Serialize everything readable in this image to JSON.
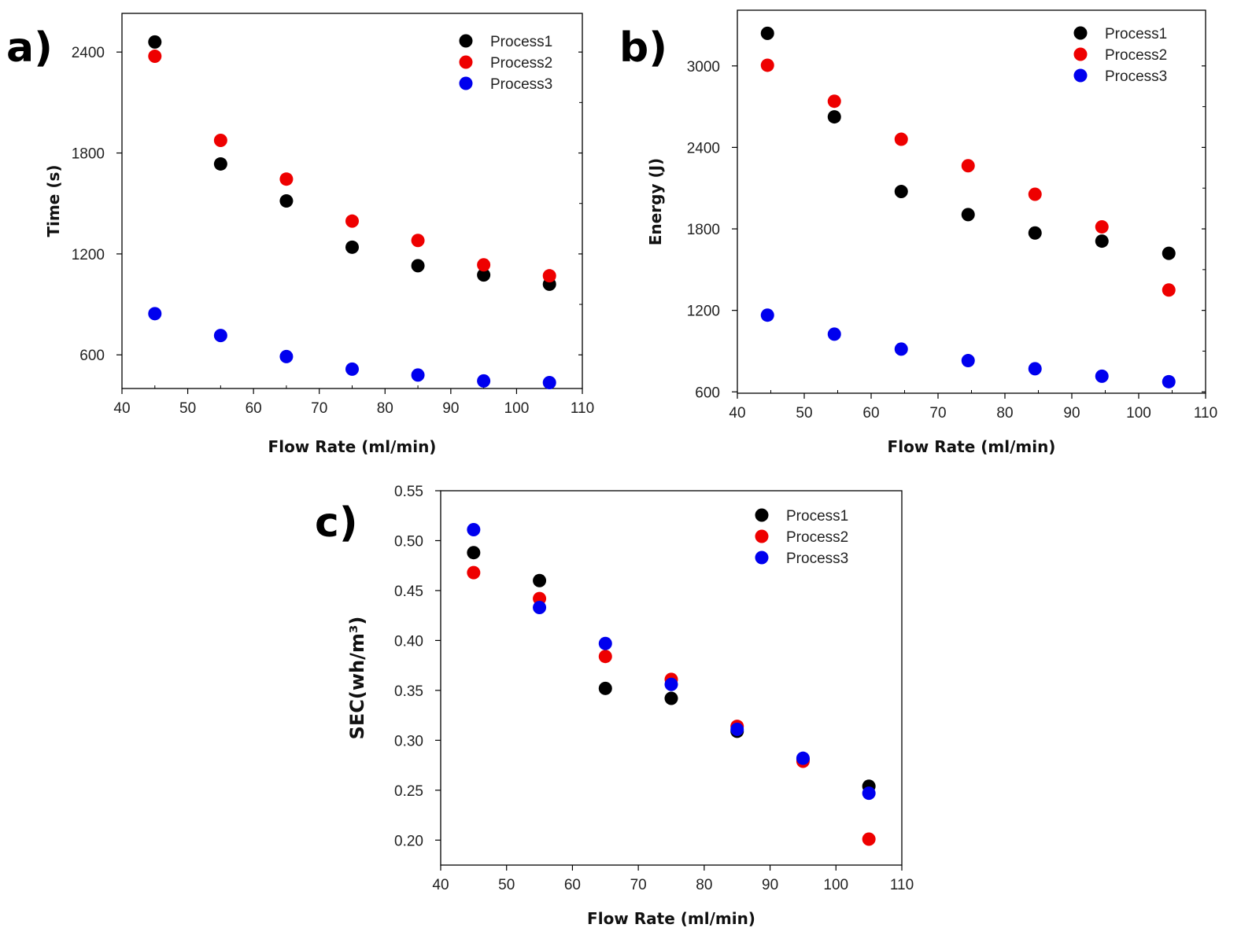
{
  "colors": {
    "Process1": "#000000",
    "Process2": "#ee0000",
    "Process3": "#0000ee"
  },
  "chart_data": [
    {
      "type": "scatter",
      "panel": "a)",
      "xlabel": "Flow Rate (ml/min)",
      "ylabel": "Time (s)",
      "xlim": [
        40,
        110
      ],
      "ylim": [
        400,
        2630
      ],
      "xticks": [
        40,
        50,
        60,
        70,
        80,
        90,
        100,
        110
      ],
      "yticks": [
        600,
        1200,
        1800,
        2400
      ],
      "legend_position": "top-right",
      "x": [
        45,
        55,
        65,
        75,
        85,
        95,
        105
      ],
      "series": [
        {
          "name": "Process1",
          "values": [
            2460,
            1735,
            1515,
            1240,
            1130,
            1075,
            1020
          ]
        },
        {
          "name": "Process2",
          "values": [
            2375,
            1875,
            1645,
            1395,
            1280,
            1135,
            1070
          ]
        },
        {
          "name": "Process3",
          "values": [
            845,
            715,
            590,
            515,
            480,
            445,
            435
          ]
        }
      ]
    },
    {
      "type": "scatter",
      "panel": "b)",
      "xlabel": "Flow Rate (ml/min)",
      "ylabel": "Energy (J)",
      "xlim": [
        40,
        110
      ],
      "ylim": [
        590,
        3410
      ],
      "xticks": [
        40,
        50,
        60,
        70,
        80,
        90,
        100,
        110
      ],
      "yticks": [
        600,
        1200,
        1800,
        2400,
        3000
      ],
      "legend_position": "top-right",
      "x": [
        44.5,
        54.5,
        64.5,
        74.5,
        84.5,
        94.5,
        104.5
      ],
      "series": [
        {
          "name": "Process1",
          "values": [
            3240,
            2625,
            2075,
            1905,
            1770,
            1710,
            1620
          ]
        },
        {
          "name": "Process2",
          "values": [
            3005,
            2740,
            2460,
            2265,
            2055,
            1815,
            1350
          ]
        },
        {
          "name": "Process3",
          "values": [
            1165,
            1025,
            915,
            830,
            770,
            715,
            675
          ]
        }
      ]
    },
    {
      "type": "scatter",
      "panel": "c)",
      "xlabel": "Flow Rate (ml/min)",
      "ylabel": "SEC(wh/m³)",
      "xlim": [
        40,
        110
      ],
      "ylim": [
        0.175,
        0.55
      ],
      "xticks": [
        40,
        50,
        60,
        70,
        80,
        90,
        100,
        110
      ],
      "yticks": [
        0.2,
        0.25,
        0.3,
        0.35,
        0.4,
        0.45,
        0.5,
        0.55
      ],
      "ytick_labels": [
        "0.20",
        "0.25",
        "0.30",
        "0.35",
        "0.40",
        "0.45",
        "0.50",
        "0.55"
      ],
      "legend_position": "top-right",
      "x": [
        45,
        55,
        65,
        75,
        85,
        95,
        105
      ],
      "series": [
        {
          "name": "Process1",
          "values": [
            0.488,
            0.46,
            0.352,
            0.342,
            0.309,
            0.281,
            0.254
          ]
        },
        {
          "name": "Process2",
          "values": [
            0.468,
            0.442,
            0.384,
            0.361,
            0.314,
            0.279,
            0.201
          ]
        },
        {
          "name": "Process3",
          "values": [
            0.511,
            0.433,
            0.397,
            0.356,
            0.311,
            0.282,
            0.247
          ]
        }
      ]
    }
  ]
}
